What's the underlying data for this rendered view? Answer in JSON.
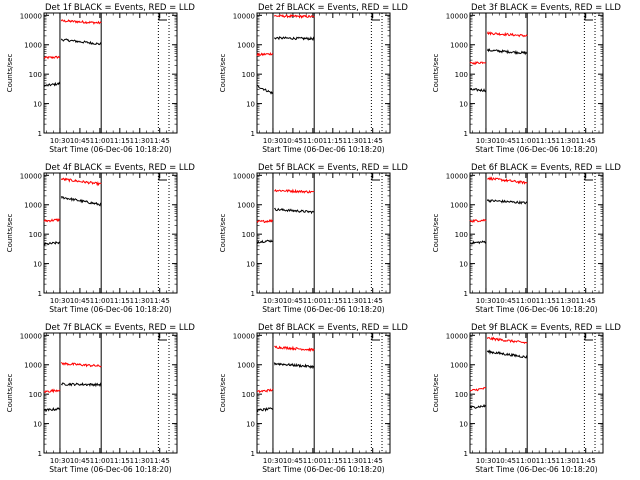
{
  "chart_data": [
    {
      "type": "line",
      "title": "Det 1f BLACK = Events, RED = LLD",
      "xlabel": "Start Time (06-Dec-06 10:18:20)",
      "ylabel": "Counts/sec",
      "y_scale": "log",
      "ylim": [
        1,
        12000
      ],
      "y_ticks": [
        {
          "value": 1,
          "label": "1"
        },
        {
          "value": 10,
          "label": "10"
        },
        {
          "value": 100,
          "label": "100"
        },
        {
          "value": 1000,
          "label": "1000"
        },
        {
          "value": 10000,
          "label": "10000"
        }
      ],
      "xlim": [
        "10:18",
        "11:58"
      ],
      "x_ticks": [
        "10:30",
        "10:45",
        "11:00",
        "11:15",
        "11:30",
        "11:45"
      ],
      "solid_markers": [
        "10:30",
        "11:01"
      ],
      "dotted_markers": [
        "11:44",
        "11:52"
      ],
      "legend_box": "top-right",
      "series": [
        {
          "color": "#ff0000",
          "segments": [
            {
              "x": [
                "10:18",
                "10:30"
              ],
              "y": [
                360,
                380
              ]
            },
            {
              "x": [
                "10:31",
                "11:01"
              ],
              "y": [
                6500,
                5500
              ]
            }
          ]
        },
        {
          "color": "#000000",
          "segments": [
            {
              "x": [
                "10:18",
                "10:30"
              ],
              "y": [
                40,
                48
              ]
            },
            {
              "x": [
                "10:31",
                "11:01"
              ],
              "y": [
                1500,
                1050
              ]
            }
          ]
        }
      ]
    },
    {
      "type": "line",
      "title": "Det 2f BLACK = Events, RED = LLD",
      "xlabel": "Start Time (06-Dec-06 10:18:20)",
      "ylabel": "Counts/sec",
      "y_scale": "log",
      "ylim": [
        1,
        12000
      ],
      "y_ticks": [
        {
          "value": 1,
          "label": "1"
        },
        {
          "value": 10,
          "label": "10"
        },
        {
          "value": 100,
          "label": "100"
        },
        {
          "value": 1000,
          "label": "1000"
        },
        {
          "value": 10000,
          "label": "10000"
        }
      ],
      "xlim": [
        "10:18",
        "11:58"
      ],
      "x_ticks": [
        "10:30",
        "10:45",
        "11:00",
        "11:15",
        "11:30",
        "11:45"
      ],
      "solid_markers": [
        "10:30",
        "11:01"
      ],
      "dotted_markers": [
        "11:44",
        "11:52"
      ],
      "legend_box": "top-right",
      "series": [
        {
          "color": "#ff0000",
          "segments": [
            {
              "x": [
                "10:18",
                "10:30"
              ],
              "y": [
                450,
                500
              ]
            },
            {
              "x": [
                "10:31",
                "11:01"
              ],
              "y": [
                9500,
                9000
              ]
            }
          ]
        },
        {
          "color": "#000000",
          "segments": [
            {
              "x": [
                "10:18",
                "10:30"
              ],
              "y": [
                40,
                22
              ]
            },
            {
              "x": [
                "10:31",
                "11:01"
              ],
              "y": [
                1700,
                1600
              ]
            }
          ]
        }
      ]
    },
    {
      "type": "line",
      "title": "Det 3f BLACK = Events, RED = LLD",
      "xlabel": "Start Time (06-Dec-06 10:18:20)",
      "ylabel": "Counts/sec",
      "y_scale": "log",
      "ylim": [
        1,
        12000
      ],
      "y_ticks": [
        {
          "value": 1,
          "label": "1"
        },
        {
          "value": 10,
          "label": "10"
        },
        {
          "value": 100,
          "label": "100"
        },
        {
          "value": 1000,
          "label": "1000"
        },
        {
          "value": 10000,
          "label": "10000"
        }
      ],
      "xlim": [
        "10:18",
        "11:58"
      ],
      "x_ticks": [
        "10:30",
        "10:45",
        "11:00",
        "11:15",
        "11:30",
        "11:45"
      ],
      "solid_markers": [
        "10:30",
        "11:01"
      ],
      "dotted_markers": [
        "11:44",
        "11:52"
      ],
      "legend_box": "top-right",
      "series": [
        {
          "color": "#ff0000",
          "segments": [
            {
              "x": [
                "10:18",
                "10:30"
              ],
              "y": [
                230,
                260
              ]
            },
            {
              "x": [
                "10:31",
                "11:01"
              ],
              "y": [
                2500,
                2000
              ]
            }
          ]
        },
        {
          "color": "#000000",
          "segments": [
            {
              "x": [
                "10:18",
                "10:30"
              ],
              "y": [
                30,
                28
              ]
            },
            {
              "x": [
                "10:31",
                "11:01"
              ],
              "y": [
                650,
                520
              ]
            }
          ]
        }
      ]
    },
    {
      "type": "line",
      "title": "Det 4f BLACK = Events, RED = LLD",
      "xlabel": "Start Time (06-Dec-06 10:18:20)",
      "ylabel": "Counts/sec",
      "y_scale": "log",
      "ylim": [
        1,
        12000
      ],
      "y_ticks": [
        {
          "value": 1,
          "label": "1"
        },
        {
          "value": 10,
          "label": "10"
        },
        {
          "value": 100,
          "label": "100"
        },
        {
          "value": 1000,
          "label": "1000"
        },
        {
          "value": 10000,
          "label": "10000"
        }
      ],
      "xlim": [
        "10:18",
        "11:58"
      ],
      "x_ticks": [
        "10:30",
        "10:45",
        "11:00",
        "11:15",
        "11:30",
        "11:45"
      ],
      "solid_markers": [
        "10:30",
        "11:01"
      ],
      "dotted_markers": [
        "11:44",
        "11:52"
      ],
      "legend_box": "top-right",
      "series": [
        {
          "color": "#ff0000",
          "segments": [
            {
              "x": [
                "10:18",
                "10:30"
              ],
              "y": [
                280,
                310
              ]
            },
            {
              "x": [
                "10:31",
                "11:01"
              ],
              "y": [
                7500,
                5000
              ]
            }
          ]
        },
        {
          "color": "#000000",
          "segments": [
            {
              "x": [
                "10:18",
                "10:30"
              ],
              "y": [
                45,
                52
              ]
            },
            {
              "x": [
                "10:31",
                "11:01"
              ],
              "y": [
                1800,
                1000
              ]
            }
          ]
        }
      ]
    },
    {
      "type": "line",
      "title": "Det 5f BLACK = Events, RED = LLD",
      "xlabel": "Start Time (06-Dec-06 10:18:20)",
      "ylabel": "Counts/sec",
      "y_scale": "log",
      "ylim": [
        1,
        12000
      ],
      "y_ticks": [
        {
          "value": 1,
          "label": "1"
        },
        {
          "value": 10,
          "label": "10"
        },
        {
          "value": 100,
          "label": "100"
        },
        {
          "value": 1000,
          "label": "1000"
        },
        {
          "value": 10000,
          "label": "10000"
        }
      ],
      "xlim": [
        "10:18",
        "11:58"
      ],
      "x_ticks": [
        "10:30",
        "10:45",
        "11:00",
        "11:15",
        "11:30",
        "11:45"
      ],
      "solid_markers": [
        "10:30",
        "11:01"
      ],
      "dotted_markers": [
        "11:44",
        "11:52"
      ],
      "legend_box": "top-right",
      "series": [
        {
          "color": "#ff0000",
          "segments": [
            {
              "x": [
                "10:18",
                "10:30"
              ],
              "y": [
                260,
                290
              ]
            },
            {
              "x": [
                "10:31",
                "11:01"
              ],
              "y": [
                3100,
                2700
              ]
            }
          ]
        },
        {
          "color": "#000000",
          "segments": [
            {
              "x": [
                "10:18",
                "10:30"
              ],
              "y": [
                55,
                60
              ]
            },
            {
              "x": [
                "10:31",
                "11:01"
              ],
              "y": [
                700,
                560
              ]
            }
          ]
        }
      ]
    },
    {
      "type": "line",
      "title": "Det 6f BLACK = Events, RED = LLD",
      "xlabel": "Start Time (06-Dec-06 10:18:20)",
      "ylabel": "Counts/sec",
      "y_scale": "log",
      "ylim": [
        1,
        12000
      ],
      "y_ticks": [
        {
          "value": 1,
          "label": "1"
        },
        {
          "value": 10,
          "label": "10"
        },
        {
          "value": 100,
          "label": "100"
        },
        {
          "value": 1000,
          "label": "1000"
        },
        {
          "value": 10000,
          "label": "10000"
        }
      ],
      "xlim": [
        "10:18",
        "11:58"
      ],
      "x_ticks": [
        "10:30",
        "10:45",
        "11:00",
        "11:15",
        "11:30",
        "11:45"
      ],
      "solid_markers": [
        "10:30",
        "11:01"
      ],
      "dotted_markers": [
        "11:44",
        "11:52"
      ],
      "legend_box": "top-right",
      "series": [
        {
          "color": "#ff0000",
          "segments": [
            {
              "x": [
                "10:18",
                "10:30"
              ],
              "y": [
                280,
                300
              ]
            },
            {
              "x": [
                "10:31",
                "11:01"
              ],
              "y": [
                8000,
                5500
              ]
            }
          ]
        },
        {
          "color": "#000000",
          "segments": [
            {
              "x": [
                "10:18",
                "10:30"
              ],
              "y": [
                50,
                55
              ]
            },
            {
              "x": [
                "10:31",
                "11:01"
              ],
              "y": [
                1400,
                1150
              ]
            }
          ]
        }
      ]
    },
    {
      "type": "line",
      "title": "Det 7f BLACK = Events, RED = LLD",
      "xlabel": "Start Time (06-Dec-06 10:18:20)",
      "ylabel": "Counts/sec",
      "y_scale": "log",
      "ylim": [
        1,
        12000
      ],
      "y_ticks": [
        {
          "value": 1,
          "label": "1"
        },
        {
          "value": 10,
          "label": "10"
        },
        {
          "value": 100,
          "label": "100"
        },
        {
          "value": 1000,
          "label": "1000"
        },
        {
          "value": 10000,
          "label": "10000"
        }
      ],
      "xlim": [
        "10:18",
        "11:58"
      ],
      "x_ticks": [
        "10:30",
        "10:45",
        "11:00",
        "11:15",
        "11:30",
        "11:45"
      ],
      "solid_markers": [
        "10:30",
        "11:01"
      ],
      "dotted_markers": [
        "11:44",
        "11:52"
      ],
      "legend_box": "top-right",
      "series": [
        {
          "color": "#ff0000",
          "segments": [
            {
              "x": [
                "10:18",
                "10:30"
              ],
              "y": [
                120,
                140
              ]
            },
            {
              "x": [
                "10:31",
                "11:01"
              ],
              "y": [
                1100,
                900
              ]
            }
          ]
        },
        {
          "color": "#000000",
          "segments": [
            {
              "x": [
                "10:18",
                "10:30"
              ],
              "y": [
                28,
                32
              ]
            },
            {
              "x": [
                "10:31",
                "11:01"
              ],
              "y": [
                220,
                210
              ]
            }
          ]
        }
      ]
    },
    {
      "type": "line",
      "title": "Det 8f BLACK = Events, RED = LLD",
      "xlabel": "Start Time (06-Dec-06 10:18:20)",
      "ylabel": "Counts/sec",
      "y_scale": "log",
      "ylim": [
        1,
        12000
      ],
      "y_ticks": [
        {
          "value": 1,
          "label": "1"
        },
        {
          "value": 10,
          "label": "10"
        },
        {
          "value": 100,
          "label": "100"
        },
        {
          "value": 1000,
          "label": "1000"
        },
        {
          "value": 10000,
          "label": "10000"
        }
      ],
      "xlim": [
        "10:18",
        "11:58"
      ],
      "x_ticks": [
        "10:30",
        "10:45",
        "11:00",
        "11:15",
        "11:30",
        "11:45"
      ],
      "solid_markers": [
        "10:30",
        "11:01"
      ],
      "dotted_markers": [
        "11:44",
        "11:52"
      ],
      "legend_box": "top-right",
      "series": [
        {
          "color": "#ff0000",
          "segments": [
            {
              "x": [
                "10:18",
                "10:30"
              ],
              "y": [
                120,
                140
              ]
            },
            {
              "x": [
                "10:31",
                "11:01"
              ],
              "y": [
                4000,
                3200
              ]
            }
          ]
        },
        {
          "color": "#000000",
          "segments": [
            {
              "x": [
                "10:18",
                "10:30"
              ],
              "y": [
                28,
                32
              ]
            },
            {
              "x": [
                "10:31",
                "11:01"
              ],
              "y": [
                1100,
                850
              ]
            }
          ]
        }
      ]
    },
    {
      "type": "line",
      "title": "Det 9f BLACK = Events, RED = LLD",
      "xlabel": "Start Time (06-Dec-06 10:18:20)",
      "ylabel": "Counts/sec",
      "y_scale": "log",
      "ylim": [
        1,
        12000
      ],
      "y_ticks": [
        {
          "value": 1,
          "label": "1"
        },
        {
          "value": 10,
          "label": "10"
        },
        {
          "value": 100,
          "label": "100"
        },
        {
          "value": 1000,
          "label": "1000"
        },
        {
          "value": 10000,
          "label": "10000"
        }
      ],
      "xlim": [
        "10:18",
        "11:58"
      ],
      "x_ticks": [
        "10:30",
        "10:45",
        "11:00",
        "11:15",
        "11:30",
        "11:45"
      ],
      "solid_markers": [
        "10:30",
        "11:01"
      ],
      "dotted_markers": [
        "11:44",
        "11:52"
      ],
      "legend_box": "top-right",
      "series": [
        {
          "color": "#ff0000",
          "segments": [
            {
              "x": [
                "10:18",
                "10:30"
              ],
              "y": [
                130,
                160
              ]
            },
            {
              "x": [
                "10:31",
                "11:01"
              ],
              "y": [
                8000,
                5500
              ]
            }
          ]
        },
        {
          "color": "#000000",
          "segments": [
            {
              "x": [
                "10:18",
                "10:30"
              ],
              "y": [
                35,
                40
              ]
            },
            {
              "x": [
                "10:31",
                "11:01"
              ],
              "y": [
                2800,
                1800
              ]
            }
          ]
        }
      ]
    }
  ]
}
